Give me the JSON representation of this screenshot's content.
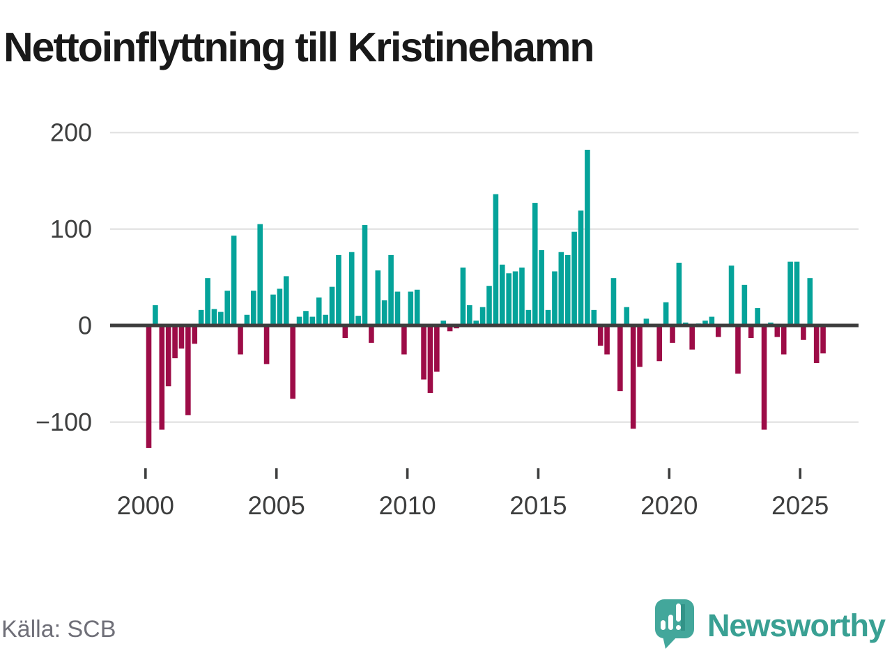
{
  "chart_data": {
    "type": "bar",
    "title": "Nettoinflyttning till Kristinehamn",
    "frequency": "quarterly",
    "x_start": "2000-K1",
    "x_end": "2025-K4",
    "categories": [
      "2000-K1",
      "2000-K2",
      "2000-K3",
      "2000-K4",
      "2001-K1",
      "2001-K2",
      "2001-K3",
      "2001-K4",
      "2002-K1",
      "2002-K2",
      "2002-K3",
      "2002-K4",
      "2003-K1",
      "2003-K2",
      "2003-K3",
      "2003-K4",
      "2004-K1",
      "2004-K2",
      "2004-K3",
      "2004-K4",
      "2005-K1",
      "2005-K2",
      "2005-K3",
      "2005-K4",
      "2006-K1",
      "2006-K2",
      "2006-K3",
      "2006-K4",
      "2007-K1",
      "2007-K2",
      "2007-K3",
      "2007-K4",
      "2008-K1",
      "2008-K2",
      "2008-K3",
      "2008-K4",
      "2009-K1",
      "2009-K2",
      "2009-K3",
      "2009-K4",
      "2010-K1",
      "2010-K2",
      "2010-K3",
      "2010-K4",
      "2011-K1",
      "2011-K2",
      "2011-K3",
      "2011-K4",
      "2012-K1",
      "2012-K2",
      "2012-K3",
      "2012-K4",
      "2013-K1",
      "2013-K2",
      "2013-K3",
      "2013-K4",
      "2014-K1",
      "2014-K2",
      "2014-K3",
      "2014-K4",
      "2015-K1",
      "2015-K2",
      "2015-K3",
      "2015-K4",
      "2016-K1",
      "2016-K2",
      "2016-K3",
      "2016-K4",
      "2017-K1",
      "2017-K2",
      "2017-K3",
      "2017-K4",
      "2018-K1",
      "2018-K2",
      "2018-K3",
      "2018-K4",
      "2019-K1",
      "2019-K2",
      "2019-K3",
      "2019-K4",
      "2020-K1",
      "2020-K2",
      "2020-K3",
      "2020-K4",
      "2021-K1",
      "2021-K2",
      "2021-K3",
      "2021-K4",
      "2022-K1",
      "2022-K2",
      "2022-K3",
      "2022-K4",
      "2023-K1",
      "2023-K2",
      "2023-K3",
      "2023-K4",
      "2024-K1",
      "2024-K2",
      "2024-K3",
      "2024-K4",
      "2025-K1",
      "2025-K2",
      "2025-K3",
      "2025-K4"
    ],
    "values": [
      -127,
      21,
      -108,
      -63,
      -34,
      -24,
      -93,
      -19,
      16,
      49,
      17,
      14,
      36,
      93,
      -30,
      11,
      36,
      105,
      -40,
      32,
      38,
      51,
      -76,
      9,
      15,
      9,
      29,
      11,
      40,
      73,
      -13,
      76,
      10,
      104,
      -18,
      57,
      26,
      73,
      35,
      -30,
      35,
      37,
      -56,
      -70,
      -48,
      5,
      -6,
      -3,
      60,
      21,
      5,
      19,
      41,
      136,
      63,
      54,
      56,
      60,
      16,
      127,
      78,
      16,
      56,
      76,
      73,
      97,
      119,
      182,
      16,
      -21,
      -30,
      49,
      -68,
      19,
      -107,
      -43,
      7,
      0,
      -37,
      24,
      -18,
      65,
      3,
      -25,
      2,
      5,
      9,
      -12,
      0,
      62,
      -50,
      42,
      -13,
      18,
      -108,
      3,
      -12,
      -30,
      66,
      66,
      -15,
      49,
      -39,
      -29
    ],
    "positive_color": "#05a39a",
    "negative_color": "#9d0c47",
    "ylim": [
      -140,
      205
    ],
    "yticks": [
      200,
      100,
      0,
      -100
    ],
    "xtick_years": [
      2000,
      2005,
      2010,
      2015,
      2020,
      2025
    ],
    "grid": "horizontal",
    "zero_line": true,
    "legend": "none"
  },
  "axis_style": {
    "tick_label_color": "#3d3e3e",
    "gridline_color": "#e3e3e3",
    "zero_line_color": "#3d3d3d"
  },
  "source": {
    "label": "Källa: SCB"
  },
  "logo": {
    "wordmark": "Newsworthy",
    "icon": "newsworthy-speech-bubble-chart-icon",
    "color": "#39a093"
  }
}
